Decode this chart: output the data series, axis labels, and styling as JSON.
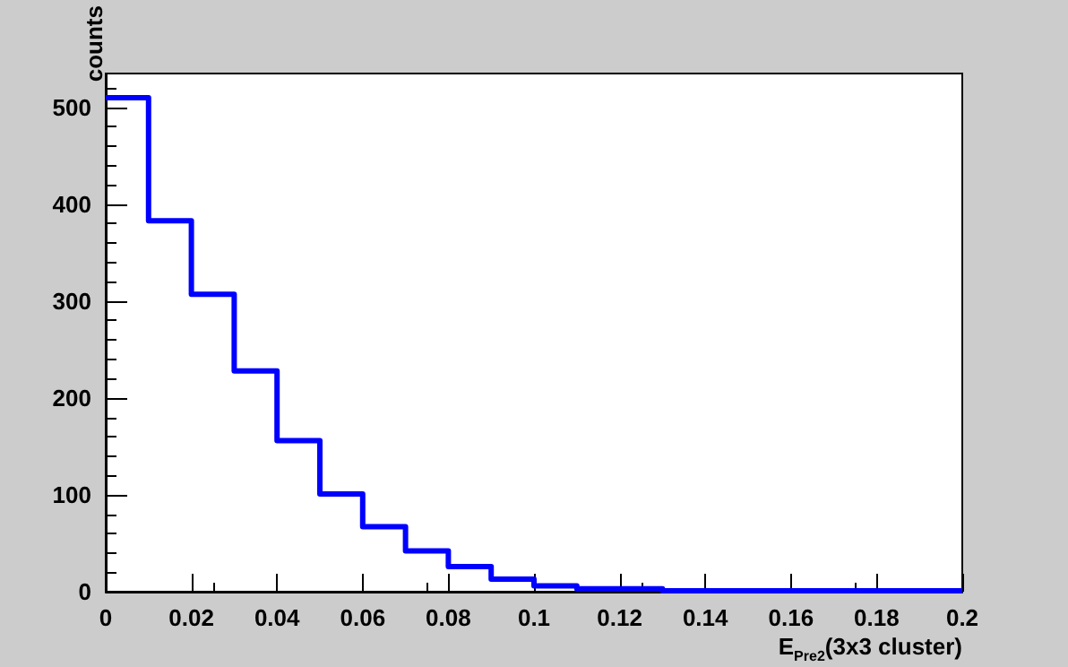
{
  "chart_data": {
    "type": "histogram",
    "xlabel": "E$_{Pre2}$(3x3 cluster)",
    "ylabel": "counts",
    "color": "#0000ff",
    "bins": [
      0,
      0.01,
      0.02,
      0.03,
      0.04,
      0.05,
      0.06,
      0.07,
      0.08,
      0.09,
      0.1,
      0.11,
      0.12,
      0.13,
      0.14,
      0.15,
      0.16,
      0.17,
      0.18,
      0.19,
      0.2
    ],
    "values": [
      510,
      383,
      307,
      228,
      156,
      101,
      67,
      42,
      26,
      13,
      6,
      3,
      3,
      1,
      1,
      1,
      1,
      1,
      1,
      1
    ],
    "xlim": [
      0,
      0.2
    ],
    "xticks": [
      0,
      0.02,
      0.04,
      0.06,
      0.08,
      0.1,
      0.12,
      0.14,
      0.16,
      0.18,
      0.2
    ],
    "ylim": [
      0,
      535
    ],
    "yticks": [
      0,
      100,
      200,
      300,
      400,
      500
    ],
    "grid": false
  }
}
